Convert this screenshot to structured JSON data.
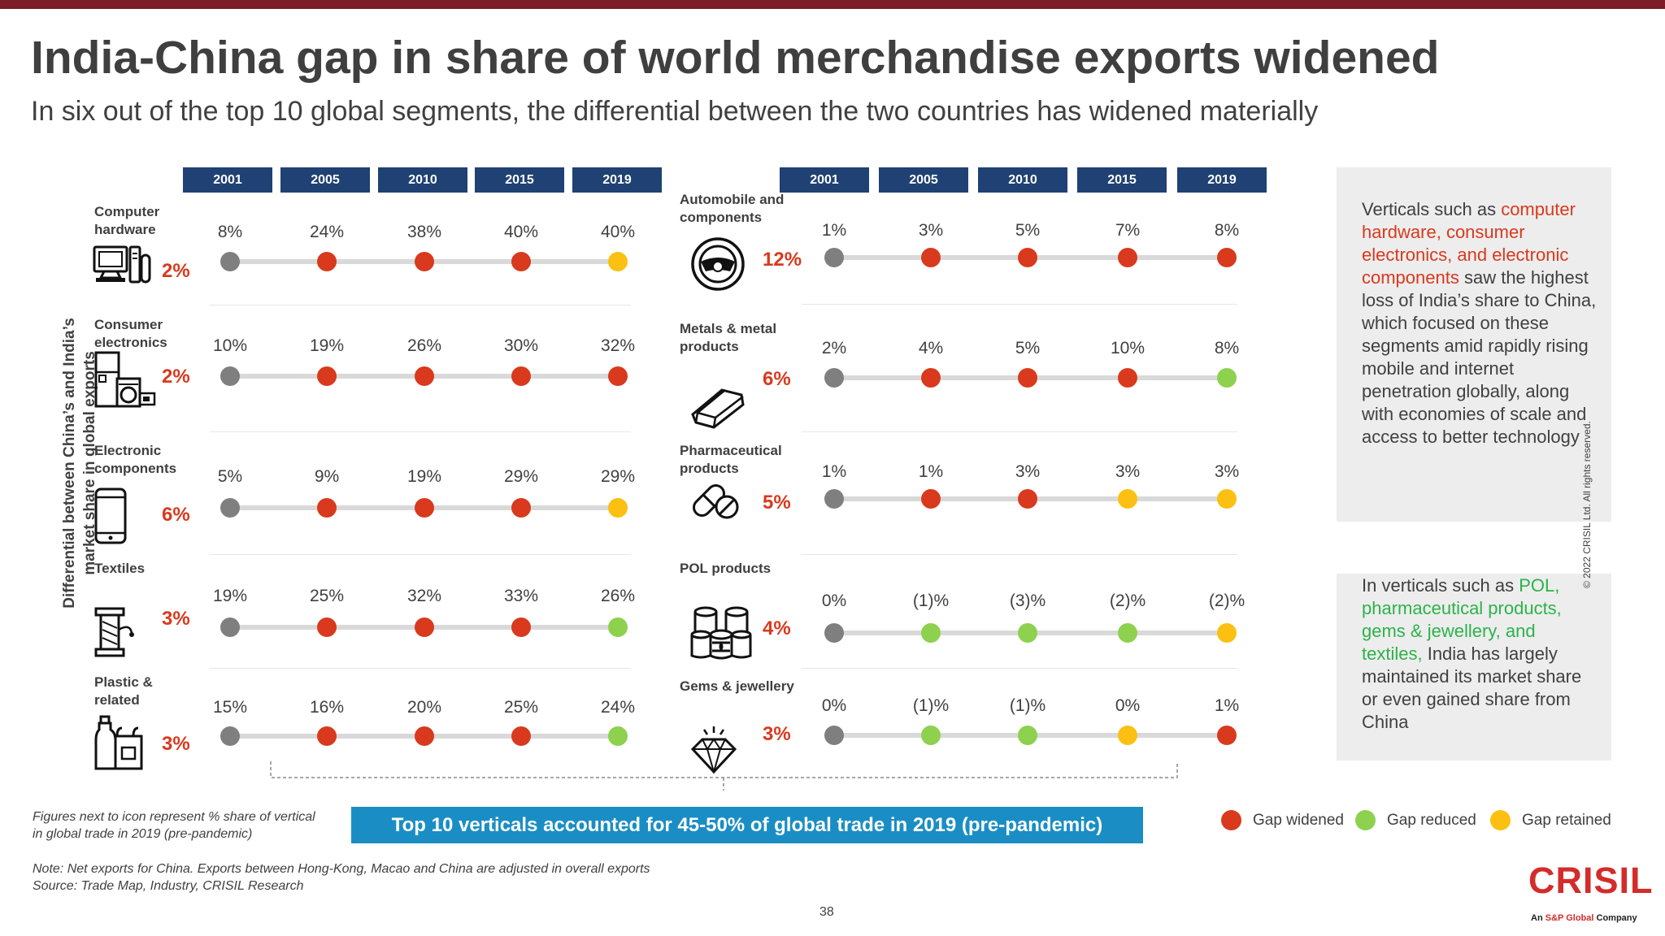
{
  "header": {
    "title": "India-China gap in share of world merchandise exports widened",
    "subtitle": "In six out of the top 10 global segments, the differential between the two countries has widened materially"
  },
  "side_label": "Differential between China’s and India’s market share in global exports",
  "years": [
    "2001",
    "2005",
    "2010",
    "2015",
    "2019"
  ],
  "left_rows": [
    {
      "name": "Computer hardware",
      "share": "2%",
      "icon": "computer-icon",
      "values": [
        "8%",
        "24%",
        "38%",
        "40%",
        "40%"
      ],
      "status": [
        "base",
        "widened",
        "widened",
        "widened",
        "retained"
      ]
    },
    {
      "name": "Consumer electronics",
      "share": "2%",
      "icon": "appliances-icon",
      "values": [
        "10%",
        "19%",
        "26%",
        "30%",
        "32%"
      ],
      "status": [
        "base",
        "widened",
        "widened",
        "widened",
        "widened"
      ]
    },
    {
      "name": "Electronic components",
      "share": "6%",
      "icon": "mobile-phone-icon",
      "values": [
        "5%",
        "9%",
        "19%",
        "29%",
        "29%"
      ],
      "status": [
        "base",
        "widened",
        "widened",
        "widened",
        "retained"
      ]
    },
    {
      "name": "Textiles",
      "share": "3%",
      "icon": "textile-icon",
      "values": [
        "19%",
        "25%",
        "32%",
        "33%",
        "26%"
      ],
      "status": [
        "base",
        "widened",
        "widened",
        "widened",
        "reduced"
      ]
    },
    {
      "name": "Plastic & related",
      "share": "3%",
      "icon": "plastic-containers-icon",
      "values": [
        "15%",
        "16%",
        "20%",
        "25%",
        "24%"
      ],
      "status": [
        "base",
        "widened",
        "widened",
        "widened",
        "reduced"
      ]
    }
  ],
  "right_rows": [
    {
      "name": "Automobile and components",
      "share": "12%",
      "icon": "steering-wheel-icon",
      "values": [
        "1%",
        "3%",
        "5%",
        "7%",
        "8%"
      ],
      "status": [
        "base",
        "widened",
        "widened",
        "widened",
        "widened"
      ]
    },
    {
      "name": "Metals & metal products",
      "share": "6%",
      "icon": "metal-bar-icon",
      "values": [
        "2%",
        "4%",
        "5%",
        "10%",
        "8%"
      ],
      "status": [
        "base",
        "widened",
        "widened",
        "widened",
        "reduced"
      ]
    },
    {
      "name": "Pharmaceutical products",
      "share": "5%",
      "icon": "pills-icon",
      "values": [
        "1%",
        "1%",
        "3%",
        "3%",
        "3%"
      ],
      "status": [
        "base",
        "widened",
        "widened",
        "retained",
        "retained"
      ]
    },
    {
      "name": "POL products",
      "share": "4%",
      "icon": "oil-barrels-icon",
      "values": [
        "0%",
        "(1)%",
        "(3)%",
        "(2)%",
        "(2)%"
      ],
      "status": [
        "base",
        "reduced",
        "reduced",
        "reduced",
        "retained"
      ]
    },
    {
      "name": "Gems & jewellery",
      "share": "3%",
      "icon": "diamond-icon",
      "values": [
        "0%",
        "(1)%",
        "(1)%",
        "0%",
        "1%"
      ],
      "status": [
        "base",
        "reduced",
        "reduced",
        "retained",
        "widened"
      ]
    }
  ],
  "colors": {
    "base": "#7f7f7f",
    "widened": "#d9391d",
    "reduced": "#8dd14e",
    "retained": "#fbc011",
    "header": "#1f4173",
    "banner": "#1a8ec4"
  },
  "box1": {
    "pre": "Verticals such as ",
    "hl": "computer hardware, consumer electronics, and electronic components",
    "post": " saw the highest loss of India’s share to China, which focused on these segments amid rapidly rising mobile and internet penetration globally, along with economies of scale and access to better technology"
  },
  "box2": {
    "pre": "In verticals such as ",
    "hl": "POL, pharmaceutical products, gems & jewellery, and textiles,",
    "post": " India has largely maintained its market share or even gained share from China"
  },
  "footnote_icon": "Figures next to icon represent % share of vertical in global trade in 2019 (pre-pandemic)",
  "banner": "Top 10 verticals accounted for 45-50% of global trade in 2019 (pre-pandemic)",
  "legend": [
    {
      "label": "Gap widened",
      "key": "widened"
    },
    {
      "label": "Gap reduced",
      "key": "reduced"
    },
    {
      "label": "Gap retained",
      "key": "retained"
    }
  ],
  "note": "Note: Net exports for China. Exports between Hong-Kong, Macao and China are adjusted in overall exports",
  "source": "Source: Trade Map, Industry, CRISIL Research",
  "page_number": "38",
  "copyright": "© 2022 CRISIL Ltd. All rights reserved.",
  "logo": {
    "name": "CRISIL",
    "tag_pre": "An ",
    "tag_hl": "S&P Global",
    "tag_post": " Company"
  }
}
